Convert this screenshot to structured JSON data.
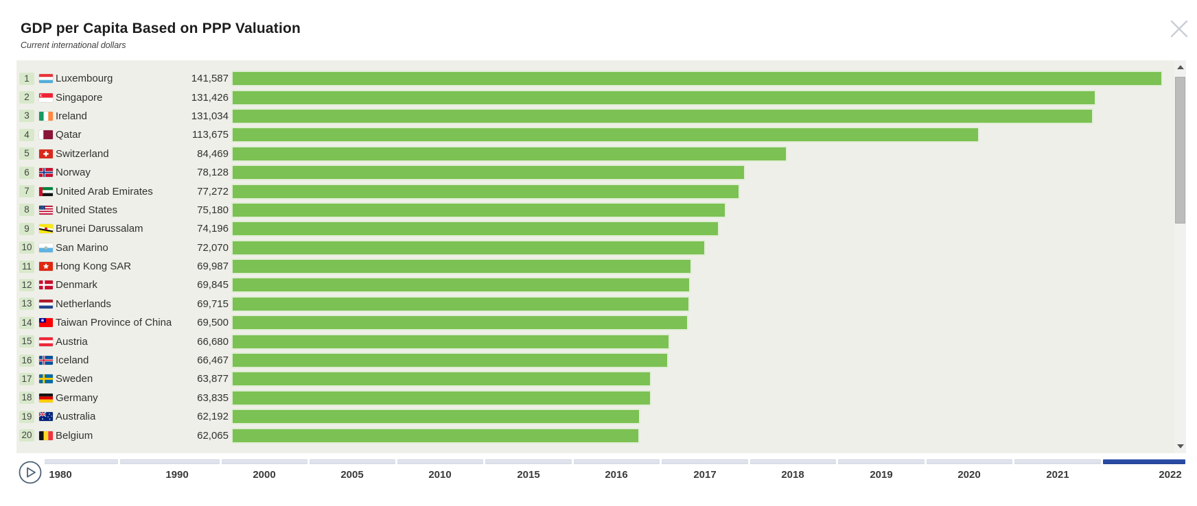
{
  "header": {
    "title": "GDP per Capita Based on PPP Valuation",
    "subtitle": "Current international dollars",
    "close_icon": "close-x"
  },
  "chart_data": {
    "type": "bar",
    "orientation": "horizontal",
    "title": "GDP per Capita Based on PPP Valuation",
    "value_unit": "Current international dollars",
    "year": "2022",
    "bar_color": "#7cc153",
    "rank_badge_color": "#d8e9cb",
    "panel_background": "#efefe9",
    "xlim": [
      0,
      141587
    ],
    "entries": [
      {
        "rank": 1,
        "country": "Luxembourg",
        "flag": "luxembourg",
        "value": 141587
      },
      {
        "rank": 2,
        "country": "Singapore",
        "flag": "singapore",
        "value": 131426
      },
      {
        "rank": 3,
        "country": "Ireland",
        "flag": "ireland",
        "value": 131034
      },
      {
        "rank": 4,
        "country": "Qatar",
        "flag": "qatar",
        "value": 113675
      },
      {
        "rank": 5,
        "country": "Switzerland",
        "flag": "switzerland",
        "value": 84469
      },
      {
        "rank": 6,
        "country": "Norway",
        "flag": "norway",
        "value": 78128
      },
      {
        "rank": 7,
        "country": "United Arab Emirates",
        "flag": "uae",
        "value": 77272
      },
      {
        "rank": 8,
        "country": "United States",
        "flag": "usa",
        "value": 75180
      },
      {
        "rank": 9,
        "country": "Brunei Darussalam",
        "flag": "brunei",
        "value": 74196
      },
      {
        "rank": 10,
        "country": "San Marino",
        "flag": "san-marino",
        "value": 72070
      },
      {
        "rank": 11,
        "country": "Hong Kong SAR",
        "flag": "hong-kong",
        "value": 69987
      },
      {
        "rank": 12,
        "country": "Denmark",
        "flag": "denmark",
        "value": 69845
      },
      {
        "rank": 13,
        "country": "Netherlands",
        "flag": "netherlands",
        "value": 69715
      },
      {
        "rank": 14,
        "country": "Taiwan Province of China",
        "flag": "taiwan",
        "value": 69500
      },
      {
        "rank": 15,
        "country": "Austria",
        "flag": "austria",
        "value": 66680
      },
      {
        "rank": 16,
        "country": "Iceland",
        "flag": "iceland",
        "value": 66467
      },
      {
        "rank": 17,
        "country": "Sweden",
        "flag": "sweden",
        "value": 63877
      },
      {
        "rank": 18,
        "country": "Germany",
        "flag": "germany",
        "value": 63835
      },
      {
        "rank": 19,
        "country": "Australia",
        "flag": "australia",
        "value": 62192
      },
      {
        "rank": 20,
        "country": "Belgium",
        "flag": "belgium",
        "value": 62065
      }
    ]
  },
  "timeline": {
    "years": [
      "1980",
      "1990",
      "2000",
      "2005",
      "2010",
      "2015",
      "2016",
      "2017",
      "2018",
      "2019",
      "2020",
      "2021",
      "2022"
    ],
    "selected_year": "2022",
    "accent_color": "#2a4a9f",
    "play_icon": "play"
  },
  "scrollbar": {
    "up_icon": "triangle-up",
    "down_icon": "triangle-down"
  }
}
